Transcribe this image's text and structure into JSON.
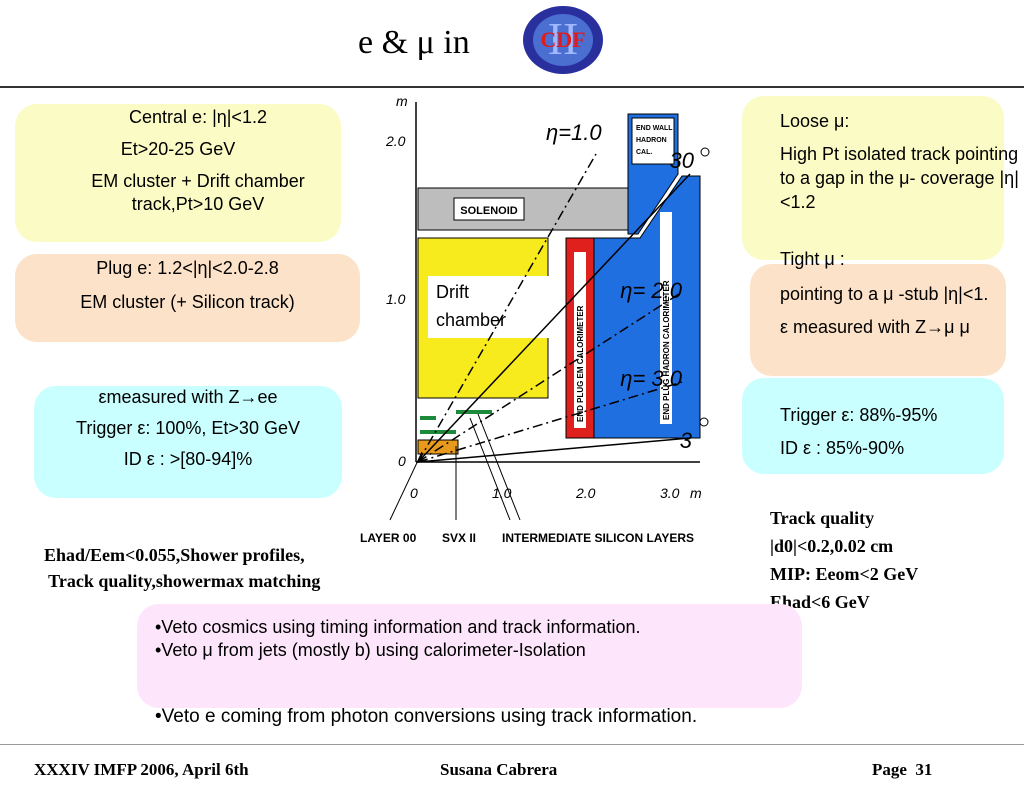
{
  "title": {
    "prefix": "e & μ  in",
    "logo_text": "CDF",
    "logo_numeral": "II"
  },
  "box_central": {
    "lines": [
      "Central e: |η|<1.2",
      "Et>20-25 GeV",
      "EM cluster + Drift chamber track,Pt>10 GeV"
    ]
  },
  "box_plug": {
    "lines": [
      "Plug e: 1.2<|η|<2.0-2.8",
      "EM cluster (+ Silicon track)"
    ]
  },
  "box_eff_e": {
    "lines": [
      "εmeasured with Z→ee",
      "Trigger ε: 100%, Et>30 GeV",
      "ID ε : >[80-94]%"
    ]
  },
  "box_loose": {
    "lines": [
      "Loose μ:",
      "High Pt isolated track pointing to a  gap in the μ- coverage |η|<1.2"
    ]
  },
  "box_tight": {
    "lines": [
      "Tight μ :",
      "pointing to a μ -stub |η|<1.",
      "ε measured with Z→μ μ"
    ]
  },
  "box_eff_mu": {
    "lines": [
      "Trigger ε: 88%-95%",
      "ID ε : 85%-90%"
    ]
  },
  "electron_notes": [
    "Ehad/Eem<0.055,Shower profiles,",
    " Track quality,showermax matching"
  ],
  "muon_notes": [
    "Track quality",
    "|d0|<0.2,0.02 cm",
    "MIP: Eeom<2 GeV",
    "Ehad<6 GeV"
  ],
  "bullets": [
    "•Veto cosmics using timing information and track information.",
    "•Veto μ from jets (mostly b) using calorimeter-Isolation",
    "•Veto e coming from photon conversions using track information."
  ],
  "footer": {
    "left": "XXXIV IMFP 2006, April 6th",
    "center": "Susana Cabrera",
    "right": "Page  31"
  },
  "diagram": {
    "y_axis_unit": "m",
    "x_axis_unit": "m",
    "y_ticks": [
      "2.0",
      "1.0",
      "0"
    ],
    "x_ticks": [
      "0",
      "1.0",
      "2.0",
      "3.0"
    ],
    "eta_labels": [
      "η=1.0",
      "η= 2.0",
      "η= 3.0"
    ],
    "angle_labels": [
      "30",
      "3"
    ],
    "solenoid": "SOLENOID",
    "end_wall": [
      "END WALL",
      "HADRON",
      "CAL."
    ],
    "plug_em": "END PLUG EM CALORIMETER",
    "plug_had": "END PLUG HADRON CALORIMETER",
    "drift_chamber": [
      "Drift",
      "chamber"
    ],
    "bottom_labels": [
      "LAYER 00",
      "SVX II",
      "INTERMEDIATE SILICON LAYERS"
    ],
    "colors": {
      "yellow": "#f7ea1d",
      "blue": "#1f6fe0",
      "red": "#e0201c",
      "gray": "#bdbdbd"
    }
  }
}
